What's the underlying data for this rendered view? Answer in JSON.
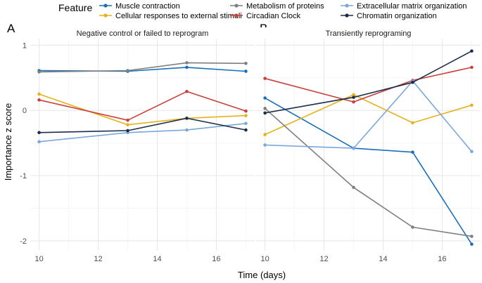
{
  "chart_data": {
    "type": "line",
    "legend": {
      "title": "Feature",
      "position": "top"
    },
    "series_styles": [
      {
        "name": "Muscle contraction",
        "color": "#1a6fba"
      },
      {
        "name": "Cellular responses to external stimuli",
        "color": "#e6b21b"
      },
      {
        "name": "Metabolism of proteins",
        "color": "#7f7f7f"
      },
      {
        "name": "Circadian Clock",
        "color": "#c8413b"
      },
      {
        "name": "Extracellular matrix organization",
        "color": "#7aa8dd"
      },
      {
        "name": "Chromatin organization",
        "color": "#1b2d4a"
      }
    ],
    "xlabel": "Time (days)",
    "ylabel": "Importance z score",
    "xlim": [
      9.7,
      17.3
    ],
    "ylim": [
      -2.15,
      1.1
    ],
    "xticks": [
      10,
      12,
      14,
      16
    ],
    "yticks": [
      -2,
      -1,
      0,
      1
    ],
    "grid": true,
    "panels": [
      {
        "tag": "A",
        "title": "Negative control or failed to reprogram",
        "x": [
          10,
          13,
          15,
          17
        ],
        "series": [
          {
            "name": "Muscle contraction",
            "values": [
              0.61,
              0.6,
              0.66,
              0.6
            ]
          },
          {
            "name": "Cellular responses to external stimuli",
            "values": [
              0.25,
              -0.22,
              -0.12,
              -0.08
            ]
          },
          {
            "name": "Metabolism of proteins",
            "values": [
              0.59,
              0.61,
              0.73,
              0.72
            ]
          },
          {
            "name": "Circadian Clock",
            "values": [
              0.16,
              -0.15,
              0.29,
              -0.01
            ]
          },
          {
            "name": "Extracellular matrix organization",
            "values": [
              -0.48,
              -0.34,
              -0.3,
              -0.2
            ]
          },
          {
            "name": "Chromatin organization",
            "values": [
              -0.34,
              -0.31,
              -0.12,
              -0.3
            ]
          }
        ]
      },
      {
        "tag": "B",
        "title": "Transiently reprograming",
        "x": [
          10,
          13,
          15,
          17
        ],
        "series": [
          {
            "name": "Muscle contraction",
            "values": [
              0.19,
              -0.58,
              -0.64,
              -2.05
            ]
          },
          {
            "name": "Cellular responses to external stimuli",
            "values": [
              -0.37,
              0.24,
              -0.19,
              0.08
            ]
          },
          {
            "name": "Metabolism of proteins",
            "values": [
              0.03,
              -1.18,
              -1.79,
              -1.93
            ]
          },
          {
            "name": "Circadian Clock",
            "values": [
              0.49,
              0.13,
              0.46,
              0.66
            ]
          },
          {
            "name": "Extracellular matrix organization",
            "values": [
              -0.53,
              -0.58,
              0.45,
              -0.63
            ]
          },
          {
            "name": "Chromatin organization",
            "values": [
              -0.04,
              0.2,
              0.43,
              0.91
            ]
          }
        ]
      }
    ]
  }
}
